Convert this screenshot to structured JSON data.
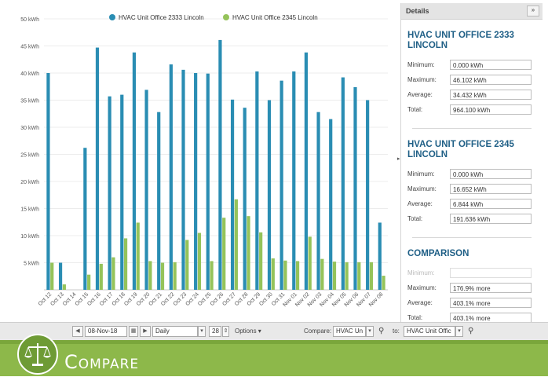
{
  "chart_data": {
    "type": "bar",
    "ylabel": "",
    "xlabel": "",
    "ylim": [
      0,
      50
    ],
    "yticks": [
      "5 kWh",
      "10 kWh",
      "15 kWh",
      "20 kWh",
      "25 kWh",
      "30 kWh",
      "35 kWh",
      "40 kWh",
      "45 kWh",
      "50 kWh"
    ],
    "categories": [
      "Oct 12",
      "Oct 13",
      "Oct 14",
      "Oct 15",
      "Oct 16",
      "Oct 17",
      "Oct 18",
      "Oct 19",
      "Oct 20",
      "Oct 21",
      "Oct 22",
      "Oct 23",
      "Oct 24",
      "Oct 25",
      "Oct 26",
      "Oct 27",
      "Oct 28",
      "Oct 29",
      "Oct 30",
      "Oct 31",
      "Nov 01",
      "Nov 02",
      "Nov 03",
      "Nov 04",
      "Nov 05",
      "Nov 06",
      "Nov 07",
      "Nov 08"
    ],
    "legend_position": "top",
    "series": [
      {
        "name": "HVAC Unit Office 2333 Lincoln",
        "color": "#2a8db3",
        "values": [
          40.0,
          5.0,
          0,
          26.2,
          44.7,
          35.7,
          36.0,
          43.8,
          36.9,
          32.8,
          41.6,
          40.6,
          40.0,
          39.9,
          46.1,
          35.1,
          33.6,
          40.3,
          35.0,
          38.6,
          40.3,
          43.8,
          32.8,
          31.5,
          39.2,
          37.4,
          35.0,
          12.4
        ]
      },
      {
        "name": "HVAC Unit Office 2345 Lincoln",
        "color": "#95c35a",
        "values": [
          5.0,
          1.0,
          0,
          2.8,
          4.8,
          6.0,
          9.5,
          12.4,
          5.3,
          5.0,
          5.1,
          9.2,
          10.5,
          5.3,
          13.3,
          16.7,
          13.6,
          10.6,
          5.8,
          5.4,
          5.3,
          9.8,
          5.7,
          5.2,
          5.1,
          5.1,
          5.1,
          2.6
        ]
      }
    ]
  },
  "details": {
    "header": "Details",
    "collapse_label": "»",
    "unit1": {
      "title": "HVAC UNIT OFFICE 2333 LINCOLN",
      "rows": [
        {
          "label": "Minimum:",
          "value": "0.000 kWh"
        },
        {
          "label": "Maximum:",
          "value": "46.102 kWh"
        },
        {
          "label": "Average:",
          "value": "34.432 kWh"
        },
        {
          "label": "Total:",
          "value": "964.100 kWh"
        }
      ]
    },
    "unit2": {
      "title": "HVAC UNIT OFFICE 2345 LINCOLN",
      "rows": [
        {
          "label": "Minimum:",
          "value": "0.000 kWh"
        },
        {
          "label": "Maximum:",
          "value": "16.652 kWh"
        },
        {
          "label": "Average:",
          "value": "6.844 kWh"
        },
        {
          "label": "Total:",
          "value": "191.636 kWh"
        }
      ]
    },
    "comparison": {
      "title": "COMPARISON",
      "rows": [
        {
          "label": "Minimum:",
          "value": ""
        },
        {
          "label": "Maximum:",
          "value": "176.9% more"
        },
        {
          "label": "Average:",
          "value": "403.1% more"
        },
        {
          "label": "Total:",
          "value": "403.1% more"
        }
      ]
    }
  },
  "toolbar": {
    "date": "08-Nov-18",
    "interval": "Daily",
    "count": "28",
    "options_label": "Options ▾",
    "compare_label": "Compare:",
    "compare_value": "HVAC Un",
    "to_label": "to:",
    "to_value": "HVAC Unit Offic"
  },
  "banner": {
    "title": "Compare"
  }
}
